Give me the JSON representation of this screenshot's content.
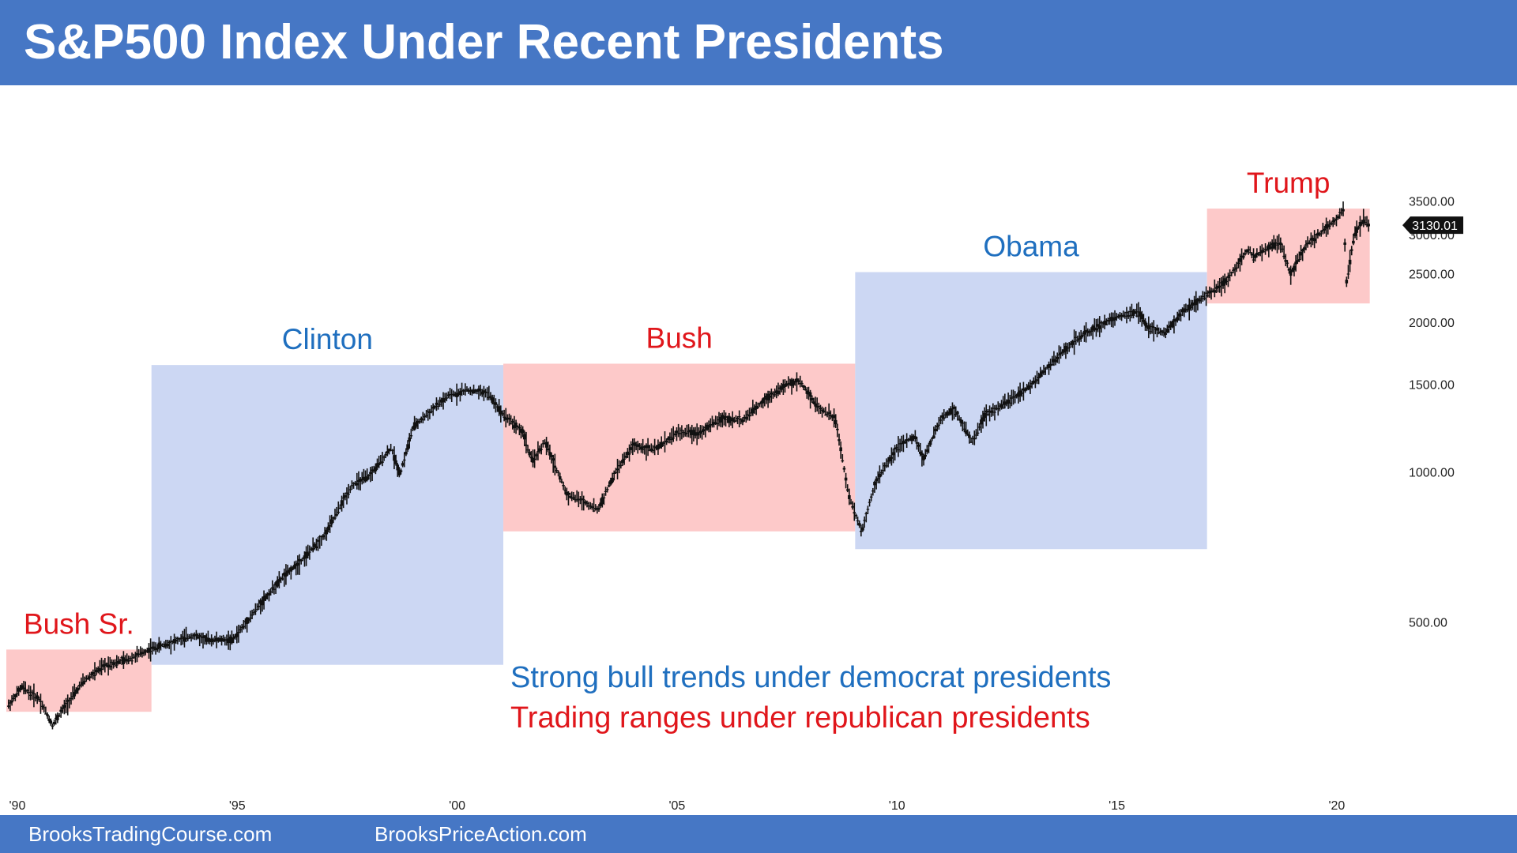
{
  "header": {
    "title": "S&P500 Index Under Recent Presidents"
  },
  "footer": {
    "left_link": "BrooksTradingCourse.com",
    "right_link": "BrooksPriceAction.com"
  },
  "notes": [
    {
      "text": "Strong bull trends under democrat presidents",
      "color": "#1f6fbf"
    },
    {
      "text": "Trading ranges under republican presidents",
      "color": "#e0161b"
    }
  ],
  "colors": {
    "header_bg": "#4677c5",
    "democrat_fill": "#ccd7f3",
    "republican_fill": "#fdc9c9",
    "democrat_label": "#1f6fbf",
    "republican_label": "#e0161b",
    "candles": "#111111",
    "last_price_tag": "#111111"
  },
  "chart_data": {
    "type": "line",
    "y_scale": "log",
    "ylim": [
      340,
      4000
    ],
    "xlim": [
      1989.75,
      2020.9
    ],
    "y_ticks": [
      {
        "value": 500,
        "label": "500.00"
      },
      {
        "value": 1000,
        "label": "1000.00"
      },
      {
        "value": 1500,
        "label": "1500.00"
      },
      {
        "value": 2000,
        "label": "2000.00"
      },
      {
        "value": 2500,
        "label": "2500.00"
      },
      {
        "value": 3000,
        "label": "3000.00"
      },
      {
        "value": 3500,
        "label": "3500.00"
      }
    ],
    "x_ticks": [
      {
        "value": 1990,
        "label": "'90"
      },
      {
        "value": 1995,
        "label": "'95"
      },
      {
        "value": 2000,
        "label": "'00"
      },
      {
        "value": 2005,
        "label": "'05"
      },
      {
        "value": 2010,
        "label": "'10"
      },
      {
        "value": 2015,
        "label": "'15"
      },
      {
        "value": 2020,
        "label": "'20"
      }
    ],
    "last_price": {
      "value": 3130.01,
      "label": "3130.01"
    },
    "presidents": [
      {
        "name": "Bush Sr.",
        "party": "republican",
        "start": 1989.75,
        "end": 1993.05,
        "low": 330,
        "high": 440
      },
      {
        "name": "Clinton",
        "party": "democrat",
        "start": 1993.05,
        "end": 2001.05,
        "low": 410,
        "high": 1640
      },
      {
        "name": "Bush",
        "party": "republican",
        "start": 2001.05,
        "end": 2009.05,
        "low": 760,
        "high": 1650
      },
      {
        "name": "Obama",
        "party": "democrat",
        "start": 2009.05,
        "end": 2017.05,
        "low": 700,
        "high": 2520
      },
      {
        "name": "Trump",
        "party": "republican",
        "start": 2017.05,
        "end": 2020.75,
        "low": 2180,
        "high": 3380
      }
    ],
    "series": [
      {
        "x": [
          1989.8,
          1990.1,
          1990.5,
          1990.8,
          1991.0,
          1991.5,
          1992.0,
          1992.5,
          1993.0,
          1994.0,
          1994.3,
          1994.9,
          1995.5,
          1996.0,
          1996.5,
          1997.0,
          1997.6,
          1998.0,
          1998.5,
          1998.7,
          1999.0,
          1999.5,
          1999.8,
          2000.2,
          2000.7,
          2001.0,
          2001.5,
          2001.7,
          2002.0,
          2002.5,
          2002.8,
          2003.2,
          2003.6,
          2004.0,
          2004.5,
          2005.0,
          2005.5,
          2006.0,
          2006.5,
          2007.0,
          2007.5,
          2007.8,
          2008.2,
          2008.6,
          2008.9,
          2009.2,
          2009.5,
          2010.0,
          2010.4,
          2010.6,
          2011.0,
          2011.3,
          2011.7,
          2012.0,
          2012.5,
          2013.0,
          2013.5,
          2014.0,
          2014.5,
          2015.0,
          2015.5,
          2015.7,
          2016.1,
          2016.5,
          2017.0,
          2017.5,
          2018.0,
          2018.1,
          2018.7,
          2018.95,
          2019.3,
          2019.5,
          2020.0,
          2020.15,
          2020.22,
          2020.4,
          2020.6,
          2020.75
        ],
        "y": [
          340,
          370,
          350,
          310,
          330,
          380,
          410,
          420,
          440,
          470,
          460,
          460,
          540,
          610,
          670,
          750,
          940,
          980,
          1120,
          990,
          1230,
          1350,
          1420,
          1460,
          1440,
          1320,
          1200,
          1050,
          1150,
          900,
          880,
          840,
          1000,
          1130,
          1110,
          1200,
          1200,
          1280,
          1270,
          1400,
          1500,
          1520,
          1350,
          1280,
          900,
          760,
          950,
          1120,
          1180,
          1060,
          1280,
          1340,
          1150,
          1300,
          1380,
          1480,
          1650,
          1820,
          1950,
          2050,
          2100,
          1950,
          1900,
          2100,
          2250,
          2430,
          2820,
          2700,
          2900,
          2500,
          2850,
          2950,
          3230,
          3380,
          2400,
          3000,
          3200,
          3130
        ]
      }
    ]
  }
}
